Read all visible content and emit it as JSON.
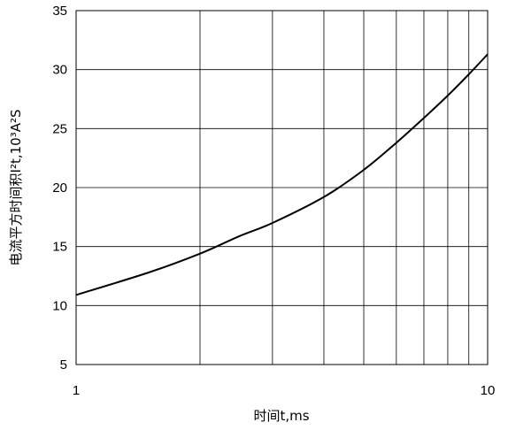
{
  "chart_data": {
    "type": "line",
    "xscale": "log",
    "xlim": [
      1,
      10
    ],
    "ylim": [
      5,
      35
    ],
    "grid": true,
    "xlabel": "时间t,ms",
    "ylabel": "电流平方时间积I²t,10³A²S",
    "x_tick_labels": [
      "1",
      "10"
    ],
    "y_ticks": [
      5,
      10,
      15,
      20,
      25,
      30,
      35
    ],
    "series": [
      {
        "x": [
          1,
          1.5,
          2,
          2.5,
          3,
          4,
          5,
          6,
          7,
          8,
          9,
          10
        ],
        "y": [
          10.9,
          12.8,
          14.4,
          15.9,
          17.0,
          19.2,
          21.5,
          23.8,
          25.9,
          27.8,
          29.6,
          31.3
        ]
      }
    ]
  }
}
